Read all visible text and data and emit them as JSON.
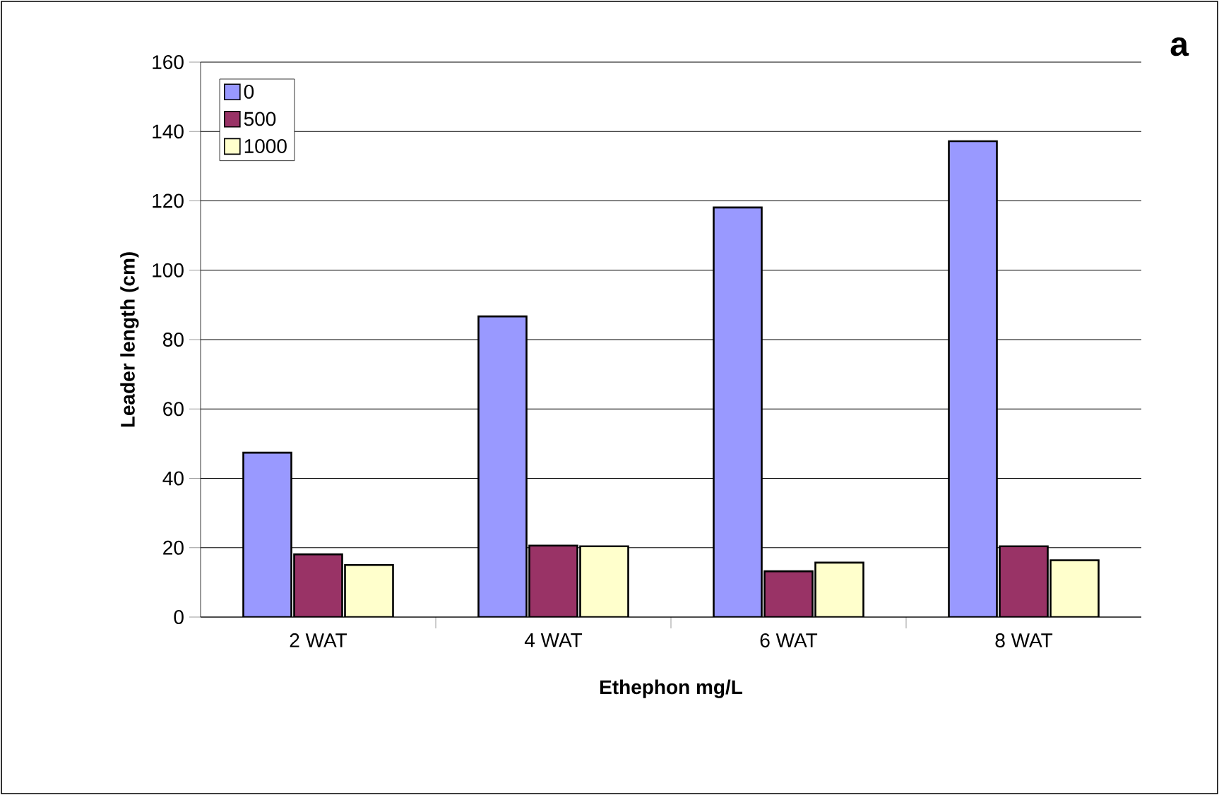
{
  "chart_data": {
    "type": "bar",
    "xlabel": "Ethephon mg/L",
    "ylabel": "Leader length (cm)",
    "categories": [
      "2 WAT",
      "4 WAT",
      "6 WAT",
      "8 WAT"
    ],
    "series": [
      {
        "name": "0",
        "color": "#9999ff",
        "values": [
          47.4,
          86.7,
          118.1,
          137.2
        ]
      },
      {
        "name": "500",
        "color": "#993366",
        "values": [
          18.1,
          20.6,
          13.2,
          20.4
        ]
      },
      {
        "name": "1000",
        "color": "#ffffcc",
        "values": [
          15.0,
          20.4,
          15.7,
          16.4
        ]
      }
    ],
    "ylim": [
      0,
      160
    ],
    "yticks": [
      0,
      20,
      40,
      60,
      80,
      100,
      120,
      140,
      160
    ],
    "grid": "y",
    "legend": "top left",
    "annotations": [
      "a"
    ]
  }
}
